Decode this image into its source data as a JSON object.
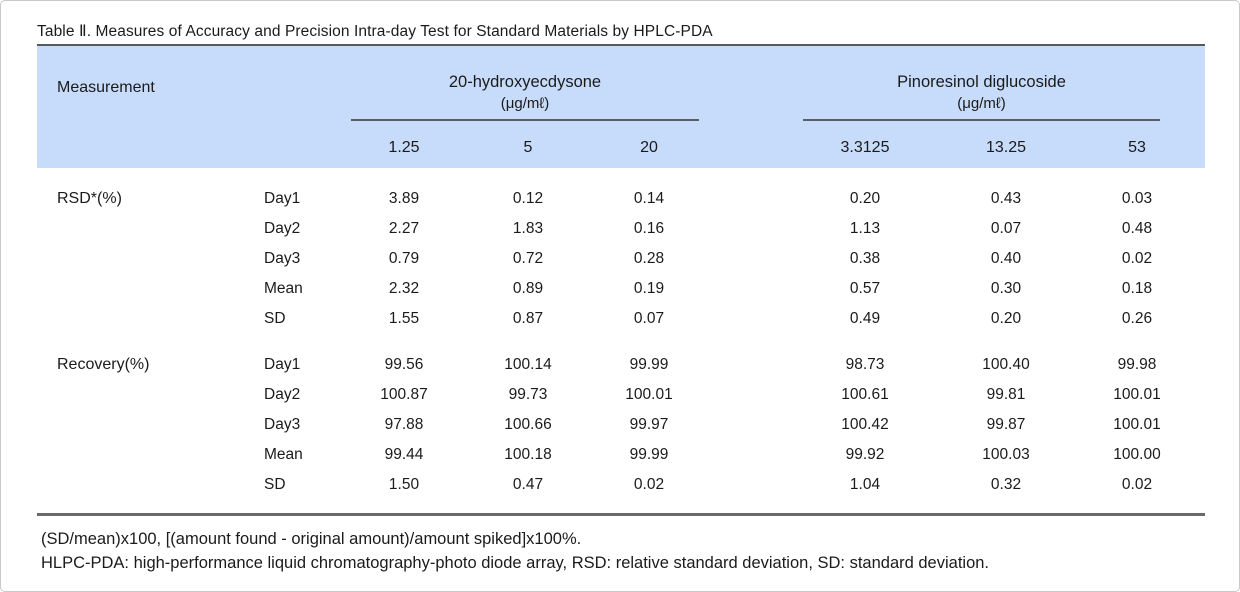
{
  "title": "Table Ⅱ. Measures of Accuracy and Precision Intra-day Test for Standard Materials by HPLC-PDA",
  "header": {
    "measurement_label": "Measurement",
    "groups": [
      {
        "name": "20-hydroxyecdysone",
        "unit": "(μg/mℓ)",
        "levels": [
          "1.25",
          "5",
          "20"
        ]
      },
      {
        "name": "Pinoresinol diglucoside",
        "unit": "(μg/mℓ)",
        "levels": [
          "3.3125",
          "13.25",
          "53"
        ]
      }
    ]
  },
  "sections": [
    {
      "label": "RSD*(%)",
      "rows": [
        {
          "day": "Day1",
          "values": [
            "3.89",
            "0.12",
            "0.14",
            "0.20",
            "0.43",
            "0.03"
          ]
        },
        {
          "day": "Day2",
          "values": [
            "2.27",
            "1.83",
            "0.16",
            "1.13",
            "0.07",
            "0.48"
          ]
        },
        {
          "day": "Day3",
          "values": [
            "0.79",
            "0.72",
            "0.28",
            "0.38",
            "0.40",
            "0.02"
          ]
        },
        {
          "day": "Mean",
          "values": [
            "2.32",
            "0.89",
            "0.19",
            "0.57",
            "0.30",
            "0.18"
          ]
        },
        {
          "day": "SD",
          "values": [
            "1.55",
            "0.87",
            "0.07",
            "0.49",
            "0.20",
            "0.26"
          ]
        }
      ]
    },
    {
      "label": "Recovery(%)",
      "rows": [
        {
          "day": "Day1",
          "values": [
            "99.56",
            "100.14",
            "99.99",
            "98.73",
            "100.40",
            "99.98"
          ]
        },
        {
          "day": "Day2",
          "values": [
            "100.87",
            "99.73",
            "100.01",
            "100.61",
            "99.81",
            "100.01"
          ]
        },
        {
          "day": "Day3",
          "values": [
            "97.88",
            "100.66",
            "99.97",
            "100.42",
            "99.87",
            "100.01"
          ]
        },
        {
          "day": "Mean",
          "values": [
            "99.44",
            "100.18",
            "99.99",
            "99.92",
            "100.03",
            "100.00"
          ]
        },
        {
          "day": "SD",
          "values": [
            "1.50",
            "0.47",
            "0.02",
            "1.04",
            "0.32",
            "0.02"
          ]
        }
      ]
    }
  ],
  "footnotes": [
    "(SD/mean)x100, [(amount found - original amount)/amount spiked]x100%.",
    "HLPC-PDA: high-performance liquid chromatography-photo diode array, RSD: relative standard deviation, SD: standard deviation."
  ],
  "colors": {
    "header_bg": "#c7dbfa",
    "rule": "#58595b",
    "text": "#1b1b1b"
  }
}
